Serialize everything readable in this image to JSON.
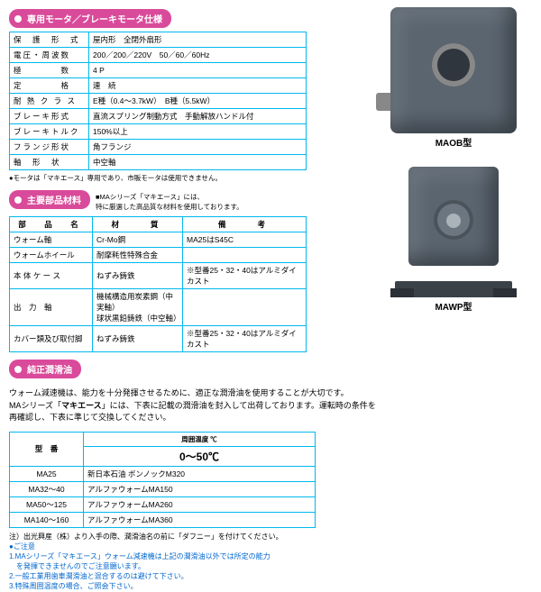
{
  "sections": {
    "motor_spec": "専用モータ／ブレーキモータ仕様",
    "materials": "主要部品材料",
    "lubricant": "純正潤滑油"
  },
  "motor_table": {
    "rows": [
      {
        "k": "保　護　形　式",
        "v": "屋内形　全閉外扇形"
      },
      {
        "k": "電圧・周波数",
        "v": "200／200／220V　50／60／60Hz"
      },
      {
        "k": "極　　　　数",
        "v": "4 P"
      },
      {
        "k": "定　　　　格",
        "v": "連　続"
      },
      {
        "k": "耐 熱 ク ラ ス",
        "v": "E種（0.4～3.7kW）　B種（5.5kW）"
      },
      {
        "k": "ブレーキ形式",
        "v": "直流スプリング制動方式　手動解放ハンドル付"
      },
      {
        "k": "ブレーキトルク",
        "v": "150%以上"
      },
      {
        "k": "フランジ形状",
        "v": "角フランジ"
      },
      {
        "k": "軸　形　状",
        "v": "中空軸"
      }
    ],
    "note": "●モータは「マキエース」専用であり、市販モータは使用できません。"
  },
  "materials_note": "■MAシリーズ「マキエース」には、\n特に厳選した高品質な材料を使用しております。",
  "materials_table": {
    "headers": [
      "部　品　名",
      "材　　質",
      "備　　考"
    ],
    "rows": [
      {
        "a": "ウォーム軸",
        "b": "Cr-Mo鋼",
        "c": "MA25はS45C"
      },
      {
        "a": "ウォームホイール",
        "b": "耐摩耗性特殊合金",
        "c": ""
      },
      {
        "a": "本 体 ケ ー ス",
        "b": "ねずみ鋳鉄",
        "c": "※型番25・32・40はアルミダイカスト"
      },
      {
        "a": "出　力　軸",
        "b": "機械構造用炭素鋼（中実軸）\n球状黒鉛鋳鉄（中空軸）",
        "c": ""
      },
      {
        "a": "カバー類及び取付脚",
        "b": "ねずみ鋳鉄",
        "c": "※型番25・32・40はアルミダイカスト"
      }
    ]
  },
  "lubricant_intro": {
    "line1": "ウォーム減速機は、能力を十分発揮させるために、適正な潤滑油を使用することが大切です。",
    "line2a": "MAシリーズ「",
    "line2b": "マキエース",
    "line2c": "」には、下表に記載の潤滑油を封入して出荷しております。運転時の条件を",
    "line3": "再確認し、下表に準じて交換してください。"
  },
  "lubricant_table": {
    "col1": "型　番",
    "col2_top": "周囲温度 ℃",
    "col2_val": "0～50℃",
    "rows": [
      {
        "a": "MA25",
        "b": "新日本石油 ボンノックM320"
      },
      {
        "a": "MA32～40",
        "b": "アルファウォームMA150"
      },
      {
        "a": "MA50～125",
        "b": "アルファウォームMA260"
      },
      {
        "a": "MA140～160",
        "b": "アルファウォームMA360"
      }
    ]
  },
  "notes": {
    "n1": "注）出光興産（株）より入手の際、潤滑油名の前に「ダフニー」を付けてください。",
    "caution": "●ご注意",
    "c1": "1.MAシリーズ「マキエース」ウォーム減速機は上記の潤滑油以外では所定の能力",
    "c1b": "　を発揮できませんのでご注意願います。",
    "c2": "2.一般工業用歯車潤滑油と混合するのは避けて下さい。",
    "c3": "3.特殊周囲温度の場合、ご照会下さい。"
  },
  "figures": {
    "maob": "MAOB型",
    "mawp": "MAWP型"
  }
}
